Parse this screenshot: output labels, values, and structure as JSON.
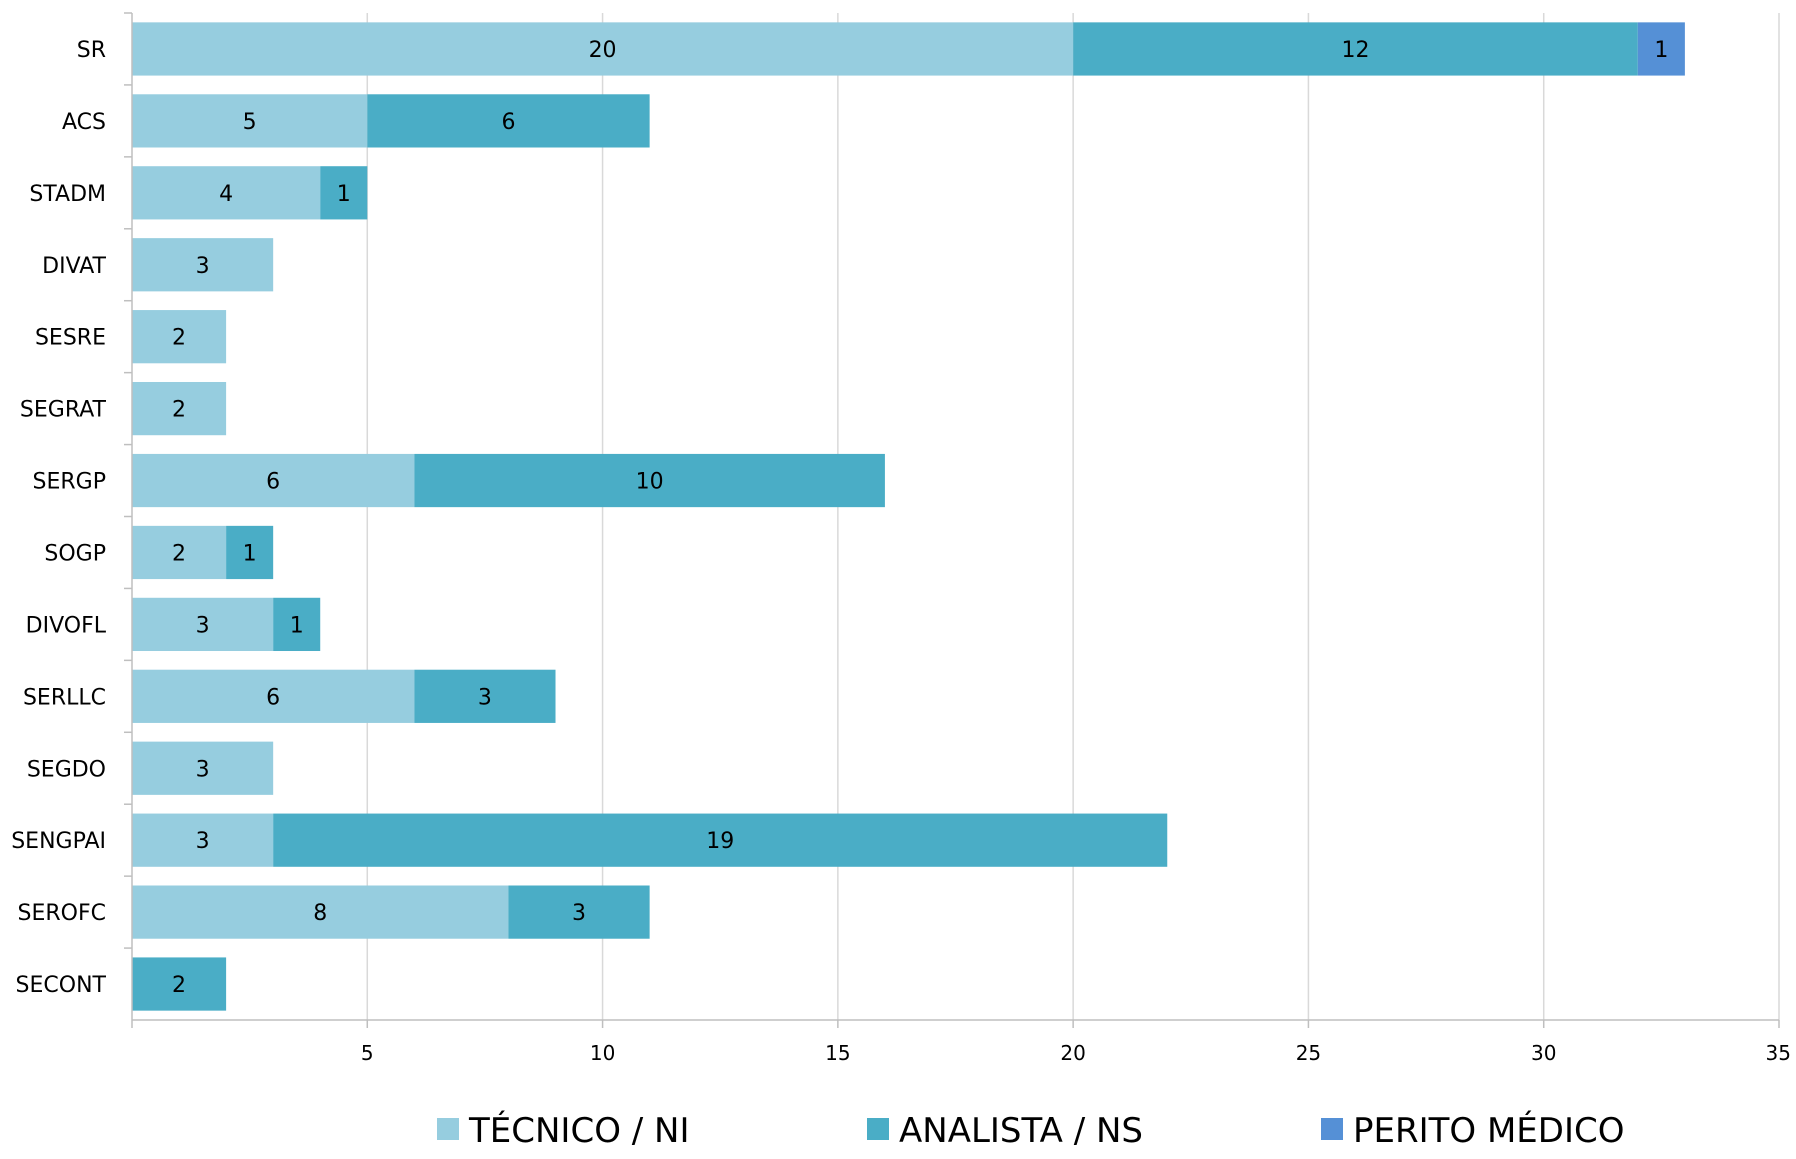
{
  "chart_data": {
    "type": "bar",
    "orientation": "horizontal",
    "stacked": true,
    "categories": [
      "SR",
      "ACS",
      "STADM",
      "DIVAT",
      "SESRE",
      "SEGRAT",
      "SERGP",
      "SOGP",
      "DIVOFL",
      "SERLLC",
      "SEGDO",
      "SENGPAI",
      "SEROFC",
      "SECONT"
    ],
    "series": [
      {
        "name": "TÉCNICO / NI",
        "color": "#96cddf",
        "values": [
          20,
          5,
          4,
          3,
          2,
          2,
          6,
          2,
          3,
          6,
          3,
          3,
          8,
          0
        ]
      },
      {
        "name": "ANALISTA / NS",
        "color": "#4aadc6",
        "values": [
          12,
          6,
          1,
          0,
          0,
          0,
          10,
          1,
          1,
          3,
          0,
          19,
          3,
          2
        ]
      },
      {
        "name": "PERITO MÉDICO",
        "color": "#5590d6",
        "values": [
          1,
          0,
          0,
          0,
          0,
          0,
          0,
          0,
          0,
          0,
          0,
          0,
          0,
          0
        ]
      }
    ],
    "xlim": [
      0,
      35
    ],
    "xticks": [
      5,
      10,
      15,
      20,
      25,
      30,
      35
    ],
    "grid": true,
    "legend": "bottom"
  }
}
